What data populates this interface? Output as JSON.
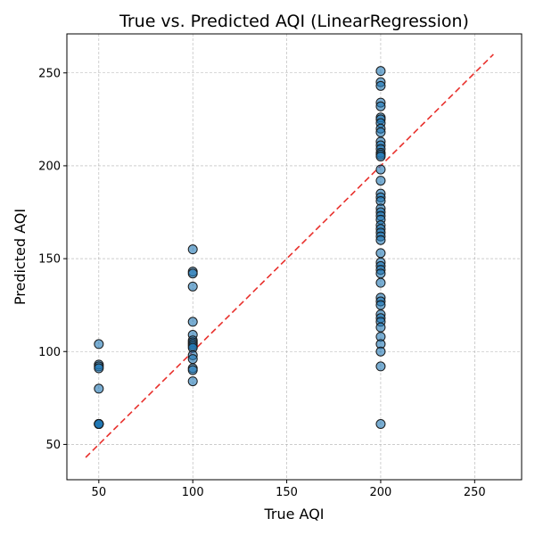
{
  "chart_data": {
    "type": "scatter",
    "title": "True vs. Predicted AQI (LinearRegression)",
    "xlabel": "True AQI",
    "ylabel": "Predicted AQI",
    "xlim": [
      33,
      275
    ],
    "ylim": [
      31,
      271
    ],
    "xticks": [
      50,
      100,
      150,
      200,
      250
    ],
    "yticks": [
      50,
      100,
      150,
      200,
      250
    ],
    "grid": true,
    "point_color": "#1f77b4",
    "point_edge_color": "#1a1a1a",
    "reference_line": {
      "x": [
        43,
        260
      ],
      "y": [
        43,
        260
      ],
      "color": "#e8302c",
      "style": "dashed"
    },
    "points": [
      [
        50,
        104
      ],
      [
        50,
        93
      ],
      [
        50,
        92
      ],
      [
        50,
        91
      ],
      [
        50,
        80
      ],
      [
        50,
        61
      ],
      [
        50,
        61
      ],
      [
        50,
        61
      ],
      [
        50,
        61
      ],
      [
        50,
        61
      ],
      [
        100,
        155
      ],
      [
        100,
        143
      ],
      [
        100,
        142
      ],
      [
        100,
        135
      ],
      [
        100,
        116
      ],
      [
        100,
        109
      ],
      [
        100,
        106
      ],
      [
        100,
        105
      ],
      [
        100,
        104
      ],
      [
        100,
        103
      ],
      [
        100,
        102
      ],
      [
        100,
        98
      ],
      [
        100,
        96
      ],
      [
        100,
        91
      ],
      [
        100,
        90
      ],
      [
        100,
        84
      ],
      [
        200,
        251
      ],
      [
        200,
        245
      ],
      [
        200,
        243
      ],
      [
        200,
        234
      ],
      [
        200,
        232
      ],
      [
        200,
        226
      ],
      [
        200,
        225
      ],
      [
        200,
        223
      ],
      [
        200,
        220
      ],
      [
        200,
        218
      ],
      [
        200,
        213
      ],
      [
        200,
        211
      ],
      [
        200,
        209
      ],
      [
        200,
        207
      ],
      [
        200,
        206
      ],
      [
        200,
        205
      ],
      [
        200,
        198
      ],
      [
        200,
        192
      ],
      [
        200,
        185
      ],
      [
        200,
        183
      ],
      [
        200,
        181
      ],
      [
        200,
        177
      ],
      [
        200,
        175
      ],
      [
        200,
        173
      ],
      [
        200,
        171
      ],
      [
        200,
        168
      ],
      [
        200,
        166
      ],
      [
        200,
        164
      ],
      [
        200,
        162
      ],
      [
        200,
        160
      ],
      [
        200,
        153
      ],
      [
        200,
        148
      ],
      [
        200,
        146
      ],
      [
        200,
        144
      ],
      [
        200,
        142
      ],
      [
        200,
        137
      ],
      [
        200,
        129
      ],
      [
        200,
        127
      ],
      [
        200,
        125
      ],
      [
        200,
        120
      ],
      [
        200,
        118
      ],
      [
        200,
        116
      ],
      [
        200,
        113
      ],
      [
        200,
        108
      ],
      [
        200,
        104
      ],
      [
        200,
        100
      ],
      [
        200,
        92
      ],
      [
        200,
        61
      ]
    ]
  }
}
